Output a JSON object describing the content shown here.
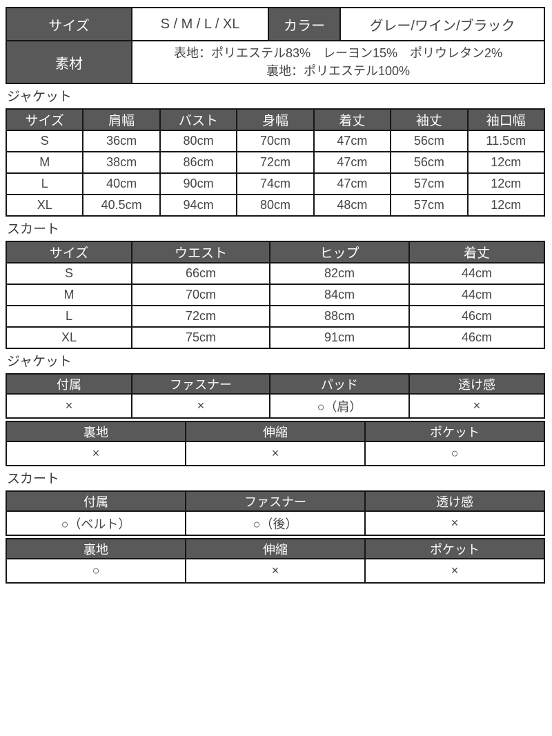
{
  "theme": {
    "header_bg": "#595959",
    "header_text": "#fafafa",
    "border_color": "#161616",
    "body_text": "#454545",
    "page_bg": "#ffffff"
  },
  "summary": {
    "size_label": "サイズ",
    "size_value": "S / M / L / XL",
    "color_label": "カラー",
    "color_value": "グレー/ワイン/ブラック",
    "material_label": "素材",
    "material_line1": "表地：ポリエステル83%　レーヨン15%　ポリウレタン2%",
    "material_line2": "裏地：ポリエステル100%"
  },
  "jacket_size": {
    "title": "ジャケット",
    "columns": [
      "サイズ",
      "肩幅",
      "バスト",
      "身幅",
      "着丈",
      "袖丈",
      "袖口幅"
    ],
    "rows": [
      [
        "S",
        "36cm",
        "80cm",
        "70cm",
        "47cm",
        "56cm",
        "11.5cm"
      ],
      [
        "M",
        "38cm",
        "86cm",
        "72cm",
        "47cm",
        "56cm",
        "12cm"
      ],
      [
        "L",
        "40cm",
        "90cm",
        "74cm",
        "47cm",
        "57cm",
        "12cm"
      ],
      [
        "XL",
        "40.5cm",
        "94cm",
        "80cm",
        "48cm",
        "57cm",
        "12cm"
      ]
    ]
  },
  "skirt_size": {
    "title": "スカート",
    "columns": [
      "サイズ",
      "ウエスト",
      "ヒップ",
      "着丈"
    ],
    "rows": [
      [
        "S",
        "66cm",
        "82cm",
        "44cm"
      ],
      [
        "M",
        "70cm",
        "84cm",
        "44cm"
      ],
      [
        "L",
        "72cm",
        "88cm",
        "46cm"
      ],
      [
        "XL",
        "75cm",
        "91cm",
        "46cm"
      ]
    ]
  },
  "jacket_details": {
    "title": "ジャケット",
    "table1": {
      "columns": [
        "付属",
        "ファスナー",
        "パッド",
        "透け感"
      ],
      "values": [
        "×",
        "×",
        "○（肩）",
        "×"
      ]
    },
    "table2": {
      "columns": [
        "裏地",
        "伸縮",
        "ポケット"
      ],
      "values": [
        "×",
        "×",
        "○"
      ]
    }
  },
  "skirt_details": {
    "title": "スカート",
    "table1": {
      "columns": [
        "付属",
        "ファスナー",
        "透け感"
      ],
      "values": [
        "○（ベルト）",
        "○（後）",
        "×"
      ]
    },
    "table2": {
      "columns": [
        "裏地",
        "伸縮",
        "ポケット"
      ],
      "values": [
        "○",
        "×",
        "×"
      ]
    }
  }
}
